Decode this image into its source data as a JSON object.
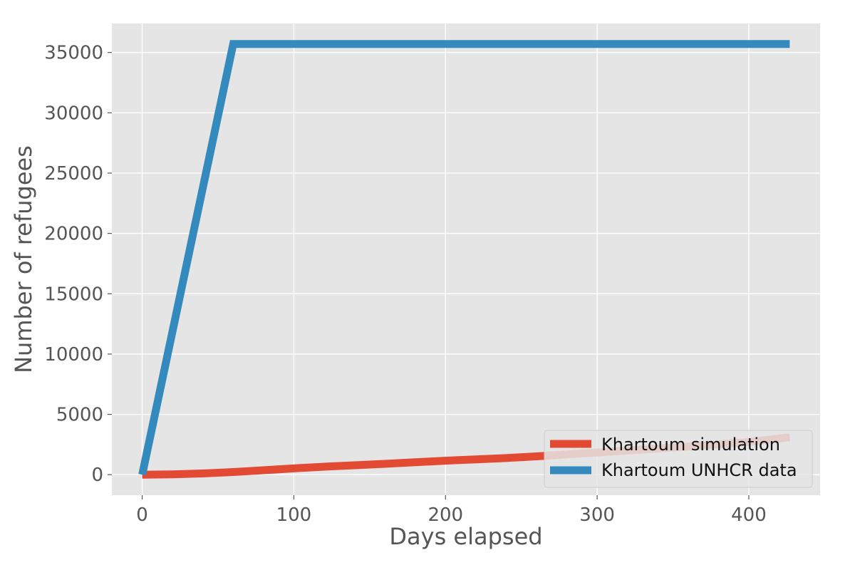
{
  "chart_data": {
    "type": "line",
    "title": "",
    "xlabel": "Days elapsed",
    "ylabel": "Number of refugees",
    "xlim": [
      -20,
      447
    ],
    "ylim": [
      -1700,
      37400
    ],
    "xticks": [
      0,
      100,
      200,
      300,
      400
    ],
    "yticks": [
      0,
      5000,
      10000,
      15000,
      20000,
      25000,
      30000,
      35000
    ],
    "grid": true,
    "legend_position": "lower-right",
    "series": [
      {
        "name": "Khartoum simulation",
        "color": "#E24A33",
        "x": [
          0,
          20,
          40,
          60,
          80,
          100,
          120,
          140,
          160,
          180,
          200,
          220,
          240,
          260,
          280,
          300,
          320,
          340,
          360,
          380,
          400,
          427
        ],
        "y": [
          0,
          30,
          100,
          220,
          370,
          520,
          660,
          780,
          900,
          1030,
          1160,
          1270,
          1380,
          1520,
          1680,
          1840,
          2000,
          2170,
          2340,
          2520,
          2700,
          3100
        ]
      },
      {
        "name": "Khartoum UNHCR data",
        "color": "#348ABD",
        "x": [
          0,
          60,
          427
        ],
        "y": [
          0,
          35700,
          35700
        ]
      }
    ]
  }
}
